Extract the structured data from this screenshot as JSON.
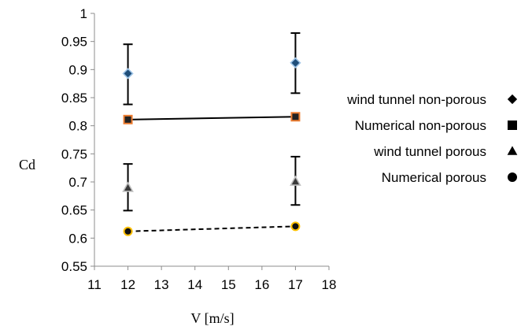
{
  "chart_data": {
    "type": "scatter",
    "xlabel": "V [m/s]",
    "ylabel": "Cd",
    "xlim": [
      11,
      18
    ],
    "ylim": [
      0.55,
      1
    ],
    "xticks": [
      11,
      12,
      13,
      14,
      15,
      16,
      17,
      18
    ],
    "yticks": [
      0.55,
      0.6,
      0.65,
      0.7,
      0.75,
      0.8,
      0.85,
      0.9,
      0.95,
      1
    ],
    "ytick_labels": [
      "0.55",
      "0.6",
      "0.65",
      "0.7",
      "0.75",
      "0.8",
      "0.85",
      "0.9",
      "0.95",
      "1"
    ],
    "grid": false,
    "legend_position": "right",
    "series": [
      {
        "name": "wind tunnel non-porous",
        "marker": "diamond",
        "fill": "#1f4e79",
        "edge": "#9dc3e6",
        "line": "none",
        "x": [
          12,
          17
        ],
        "y": [
          0.893,
          0.912
        ],
        "error_low": [
          0.838,
          0.858
        ],
        "error_high": [
          0.945,
          0.965
        ]
      },
      {
        "name": "Numerical non-porous",
        "marker": "square",
        "fill": "#222222",
        "edge": "#ed7d31",
        "line": "solid",
        "x": [
          12,
          17
        ],
        "y": [
          0.811,
          0.816
        ]
      },
      {
        "name": "wind tunnel porous",
        "marker": "triangle",
        "fill": "#3a3a3a",
        "edge": "#bfbfbf",
        "line": "none",
        "x": [
          12,
          17
        ],
        "y": [
          0.69,
          0.701
        ],
        "error_low": [
          0.649,
          0.659
        ],
        "error_high": [
          0.732,
          0.745
        ]
      },
      {
        "name": "Numerical porous",
        "marker": "circle",
        "fill": "#111111",
        "edge": "#ffc000",
        "line": "dashed",
        "x": [
          12,
          17
        ],
        "y": [
          0.612,
          0.621
        ]
      }
    ]
  }
}
